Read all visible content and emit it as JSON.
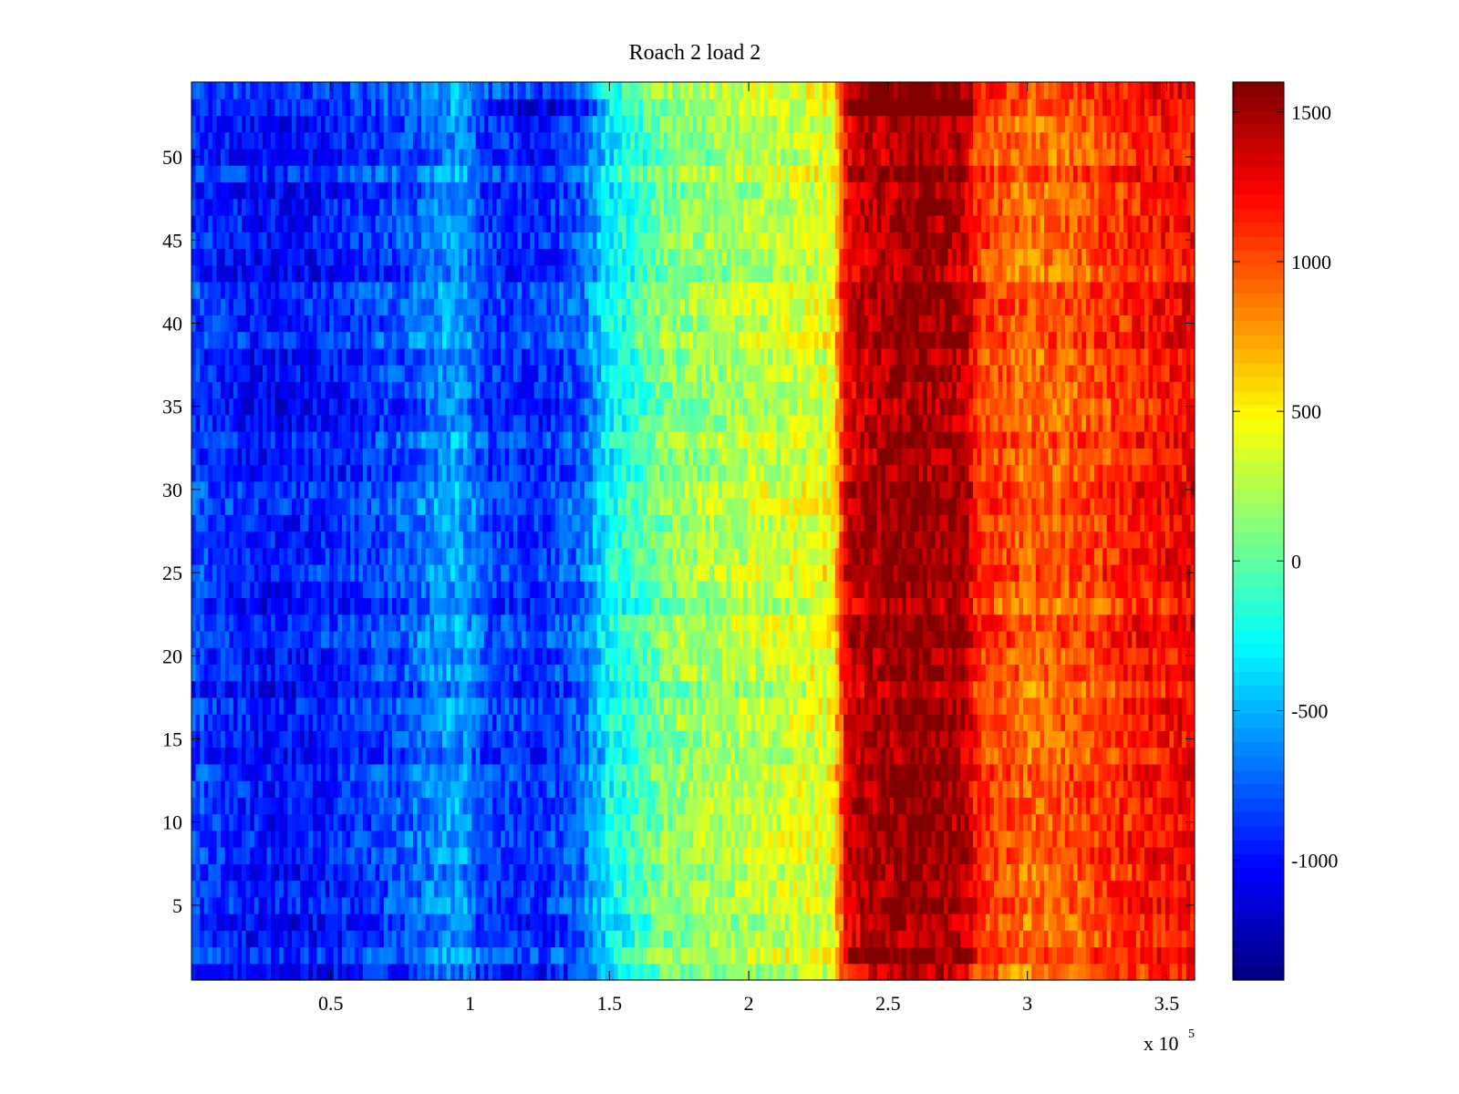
{
  "chart_data": {
    "type": "heatmap",
    "title": "Roach 2 load 2",
    "xlabel": "",
    "ylabel": "",
    "x_multiplier_base": "x 10",
    "x_multiplier_exponent": "5",
    "xlim": [
      0,
      3.6
    ],
    "ylim": [
      0.5,
      54.5
    ],
    "x_ticks": [
      "0.5",
      "1",
      "1.5",
      "2",
      "2.5",
      "3",
      "3.5"
    ],
    "y_ticks": [
      "5",
      "10",
      "15",
      "20",
      "25",
      "30",
      "35",
      "40",
      "45",
      "50"
    ],
    "colorbar": {
      "colormap": "jet",
      "range": [
        -1400,
        1600
      ],
      "ticks": [
        "-1000",
        "-500",
        "0",
        "500",
        "1000",
        "1500"
      ]
    },
    "rows": 54,
    "grid": false,
    "profile_x": [
      0.0,
      0.25,
      0.5,
      0.75,
      0.95,
      1.0,
      1.05,
      1.25,
      1.4,
      1.5,
      1.7,
      1.9,
      2.1,
      2.3,
      2.35,
      2.4,
      2.6,
      2.78,
      2.82,
      3.0,
      3.2,
      3.4,
      3.6
    ],
    "profile_value": [
      -850,
      -1000,
      -950,
      -800,
      -550,
      -650,
      -850,
      -900,
      -750,
      -300,
      100,
      220,
      300,
      400,
      1300,
      1420,
      1550,
      1430,
      1100,
      900,
      980,
      1150,
      1250
    ]
  }
}
